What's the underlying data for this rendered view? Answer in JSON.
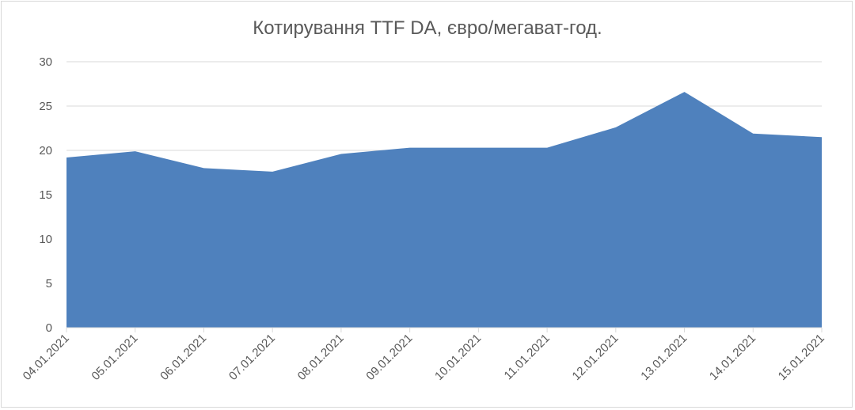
{
  "chart_data": {
    "type": "area",
    "title": "Котирування TTF DA, євро/мегават-год.",
    "categories": [
      "04.01.2021",
      "05.01.2021",
      "06.01.2021",
      "07.01.2021",
      "08.01.2021",
      "09.01.2021",
      "10.01.2021",
      "11.01.2021",
      "12.01.2021",
      "13.01.2021",
      "14.01.2021",
      "15.01.2021"
    ],
    "series": [
      {
        "values": [
          19.2,
          19.9,
          18.0,
          17.6,
          19.6,
          20.3,
          20.3,
          20.3,
          22.6,
          26.6,
          21.9,
          21.5
        ]
      }
    ],
    "ylim": [
      0,
      30
    ],
    "yticks": [
      0,
      5,
      10,
      15,
      20,
      25,
      30
    ],
    "grid": true,
    "legend": "none",
    "fill_color": "#4f81bd"
  }
}
